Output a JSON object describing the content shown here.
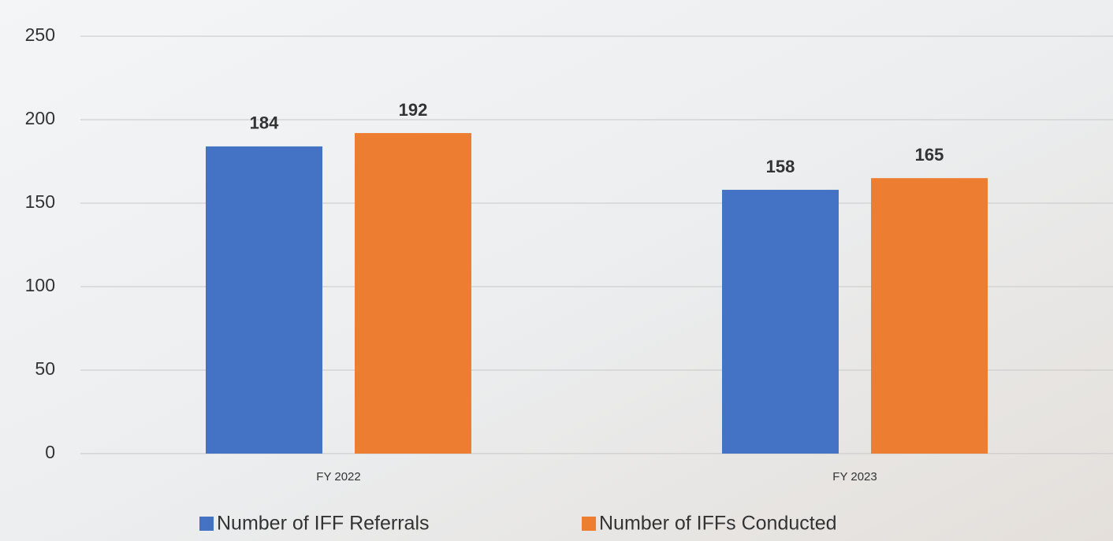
{
  "chart_data": {
    "type": "bar",
    "categories": [
      "FY 2022",
      "FY 2023"
    ],
    "series": [
      {
        "name": "Number of IFF Referrals",
        "color": "#4472c4",
        "values": [
          184,
          158
        ]
      },
      {
        "name": "Number of IFFs Conducted",
        "color": "#ed7d31",
        "values": [
          192,
          165
        ]
      }
    ],
    "ylim": [
      0,
      250
    ],
    "yticks": [
      0,
      50,
      100,
      150,
      200,
      250
    ],
    "grid": true,
    "legend": "bottom"
  }
}
